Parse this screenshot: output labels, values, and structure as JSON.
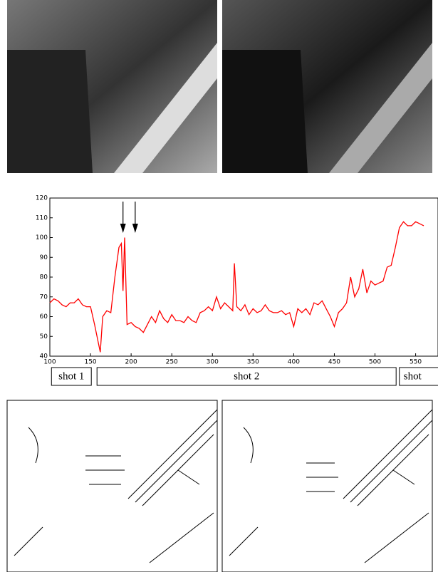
{
  "chart_data": {
    "type": "line",
    "color": "#ff0000",
    "x": [
      100,
      105,
      110,
      115,
      120,
      125,
      130,
      135,
      140,
      145,
      150,
      155,
      160,
      162,
      165,
      170,
      175,
      180,
      185,
      188,
      190,
      192,
      195,
      200,
      205,
      210,
      215,
      220,
      225,
      230,
      235,
      240,
      245,
      250,
      255,
      260,
      265,
      270,
      275,
      280,
      285,
      290,
      295,
      300,
      305,
      310,
      315,
      320,
      325,
      327,
      330,
      335,
      340,
      345,
      350,
      355,
      360,
      365,
      370,
      375,
      380,
      385,
      390,
      395,
      400,
      405,
      410,
      415,
      420,
      425,
      430,
      435,
      440,
      445,
      450,
      455,
      460,
      465,
      470,
      475,
      480,
      485,
      490,
      495,
      500,
      505,
      510,
      515,
      520,
      525,
      530,
      535,
      540,
      545,
      550,
      555,
      560
    ],
    "values": [
      67,
      69,
      68,
      66,
      65,
      67,
      67,
      69,
      66,
      65,
      65,
      56,
      46,
      42,
      60,
      63,
      62,
      80,
      95,
      97,
      73,
      100,
      56,
      57,
      55,
      54,
      52,
      56,
      60,
      57,
      63,
      59,
      57,
      61,
      58,
      58,
      57,
      60,
      58,
      57,
      62,
      63,
      65,
      63,
      70,
      64,
      67,
      65,
      63,
      87,
      65,
      63,
      66,
      61,
      64,
      62,
      63,
      66,
      63,
      62,
      62,
      63,
      61,
      62,
      55,
      64,
      62,
      64,
      61,
      67,
      66,
      68,
      64,
      60,
      55,
      62,
      64,
      67,
      80,
      70,
      74,
      84,
      72,
      78,
      76,
      77,
      78,
      85,
      86,
      95,
      105,
      108,
      106,
      106,
      108,
      107,
      106
    ],
    "xlim": [
      100,
      560
    ],
    "xticks": [
      100,
      150,
      200,
      250,
      300,
      350,
      400,
      450,
      500,
      550
    ],
    "ylim": [
      40,
      120
    ],
    "yticks": [
      40,
      50,
      60,
      70,
      80,
      90,
      100,
      110,
      120
    ],
    "arrows": [
      190,
      205
    ]
  },
  "shots": [
    {
      "label": "shot 1",
      "start": 102,
      "end": 151
    },
    {
      "label": "shot 2",
      "start": 158,
      "end": 526
    },
    {
      "label": "shot",
      "start": 530
    }
  ]
}
